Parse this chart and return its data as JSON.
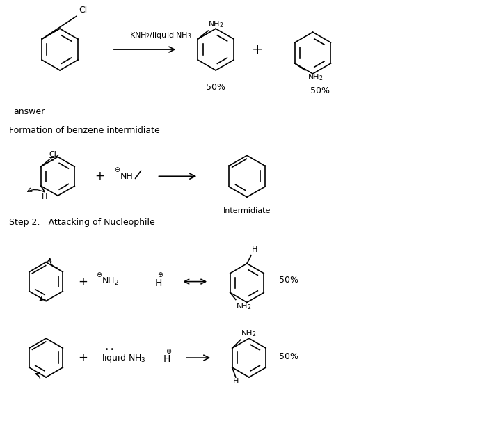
{
  "background_color": "#ffffff",
  "title_fontsize": 11,
  "text_color": "#000000",
  "line_color": "#000000",
  "texts": {
    "reagent": "KNH₂/liquid NH₃",
    "pct1": "50%",
    "pct2": "50%",
    "plus1": "+",
    "answer": "answer",
    "formation": "Formation of benzene intermidiate",
    "plus2": "+",
    "intermediate": "Intermidiate",
    "step2": "Step 2:   Attacking of Nucleophile",
    "plus3": "+",
    "plus4": "+",
    "pct3": "50%",
    "pct4": "50%"
  }
}
